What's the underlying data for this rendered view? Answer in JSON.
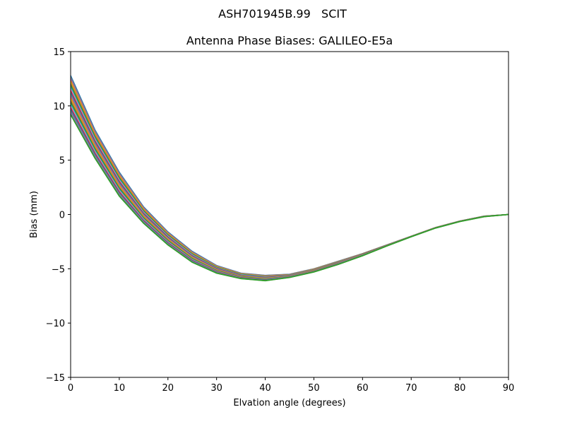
{
  "figure": {
    "suptitle": "ASH701945B.99   SCIT",
    "title": "Antenna Phase Biases: GALILEO-E5a"
  },
  "chart_data": {
    "type": "line",
    "title": "Antenna Phase Biases: GALILEO-E5a",
    "suptitle": "ASH701945B.99   SCIT",
    "xlabel": "Elvation angle (degrees)",
    "ylabel": "Bias (mm)",
    "xlim": [
      0,
      90
    ],
    "ylim": [
      -15,
      15
    ],
    "xticks": [
      0,
      10,
      20,
      30,
      40,
      50,
      60,
      70,
      80,
      90
    ],
    "yticks": [
      -15,
      -10,
      -5,
      0,
      5,
      10,
      15
    ],
    "ytick_labels": [
      "−15",
      "−10",
      "−5",
      "0",
      "5",
      "10",
      "15"
    ],
    "grid": false,
    "legend": null,
    "x": [
      0,
      5,
      10,
      15,
      20,
      25,
      30,
      35,
      40,
      45,
      50,
      55,
      60,
      65,
      70,
      75,
      80,
      85,
      90
    ],
    "note": "Many overlapping series (one per azimuth) forming a band; upper and lower envelopes given, intermediate series interpolated.",
    "series_envelope": {
      "upper": [
        12.8,
        7.8,
        3.9,
        0.7,
        -1.6,
        -3.4,
        -4.7,
        -5.4,
        -5.6,
        -5.5,
        -5.0,
        -4.3,
        -3.6,
        -2.8,
        -2.0,
        -1.2,
        -0.6,
        -0.15,
        0.0
      ],
      "lower": [
        9.2,
        5.2,
        1.7,
        -0.8,
        -2.8,
        -4.4,
        -5.4,
        -5.9,
        -6.1,
        -5.8,
        -5.3,
        -4.6,
        -3.8,
        -2.9,
        -2.05,
        -1.25,
        -0.65,
        -0.2,
        0.0
      ]
    },
    "series_count": 24,
    "colors": [
      "#1f77b4",
      "#ff7f0e",
      "#2ca02c",
      "#d62728",
      "#9467bd",
      "#8c564b",
      "#e377c2",
      "#7f7f7f",
      "#bcbd22",
      "#17becf"
    ]
  }
}
